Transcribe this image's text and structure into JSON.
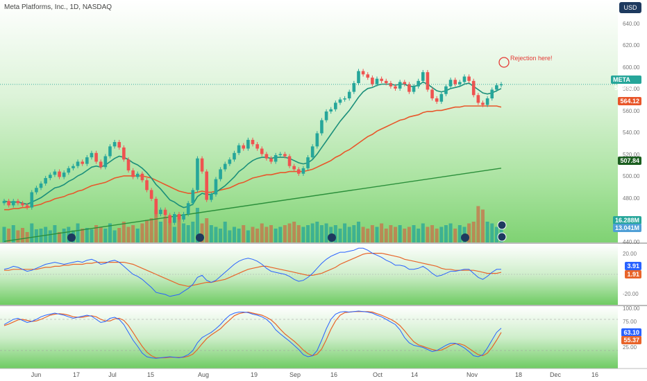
{
  "header": {
    "title": "Meta Platforms, Inc., 1D, NASDAQ",
    "currency_button": "USD"
  },
  "annotation": "Rejection here!",
  "colors": {
    "up": "#26a69a",
    "down": "#ef5350",
    "ema_fast": "#1b8f7a",
    "ema_mid": "#e8562a",
    "ema_slow": "#2a8f3a",
    "vol_up": "#26a69a",
    "vol_down": "#c9704a",
    "macd": "#2962ff",
    "signal": "#e8642a",
    "stoch_k": "#2962ff",
    "stoch_d": "#e8642a"
  },
  "price_axis": [
    "640.00",
    "620.00",
    "600.00",
    "580.00",
    "560.00",
    "540.00",
    "520.00",
    "500.00",
    "480.00",
    "460.00",
    "440.00"
  ],
  "badges": {
    "price": {
      "label": "META",
      "value": "584.82"
    },
    "ema_mid": "564.12",
    "ema_slow": "507.84",
    "vol1": "16.288M",
    "vol2": "13.041M",
    "macd_hi": "3.91",
    "macd_lo": "1.91",
    "stoch_hi": "63.10",
    "stoch_lo": "55.37"
  },
  "macd_axis": [
    "20.00",
    "-20.00"
  ],
  "stoch_axis": [
    "100.00",
    "75.00",
    "50.00",
    "25.00"
  ],
  "x_axis": [
    "Jun",
    "17",
    "Jul",
    "15",
    "Aug",
    "19",
    "Sep",
    "16",
    "Oct",
    "14",
    "Nov",
    "18",
    "Dec",
    "16"
  ],
  "chart_data": {
    "type": "candlestick",
    "title": "Meta Platforms, Inc., 1D, NASDAQ",
    "ylim": [
      440,
      645
    ],
    "close": [
      478,
      474,
      478,
      476,
      474,
      472,
      486,
      490,
      494,
      499,
      502,
      505,
      500,
      504,
      508,
      510,
      514,
      512,
      518,
      522,
      514,
      509,
      519,
      528,
      532,
      527,
      516,
      506,
      500,
      503,
      497,
      488,
      480,
      466,
      470,
      465,
      458,
      466,
      461,
      466,
      476,
      488,
      517,
      505,
      479,
      484,
      498,
      507,
      512,
      516,
      522,
      529,
      526,
      534,
      530,
      526,
      521,
      517,
      514,
      520,
      521,
      519,
      510,
      507,
      503,
      508,
      518,
      528,
      540,
      552,
      560,
      562,
      568,
      571,
      572,
      578,
      586,
      597,
      594,
      591,
      585,
      590,
      588,
      586,
      583,
      581,
      587,
      585,
      578,
      583,
      588,
      596,
      580,
      572,
      569,
      576,
      583,
      589,
      585,
      587,
      592,
      588,
      575,
      568,
      566,
      572,
      580,
      584,
      585
    ],
    "ema_fast": [
      478,
      477,
      477,
      477,
      476,
      475,
      477,
      479,
      481,
      484,
      487,
      490,
      491,
      493,
      496,
      498,
      501,
      503,
      506,
      509,
      510,
      509,
      511,
      514,
      517,
      519,
      518,
      516,
      513,
      511,
      508,
      504,
      499,
      493,
      489,
      484,
      479,
      477,
      474,
      472,
      473,
      475,
      482,
      485,
      484,
      484,
      486,
      489,
      492,
      496,
      500,
      505,
      508,
      512,
      515,
      517,
      518,
      518,
      517,
      518,
      518,
      518,
      517,
      515,
      513,
      512,
      513,
      516,
      521,
      527,
      533,
      539,
      545,
      551,
      556,
      561,
      567,
      573,
      578,
      581,
      582,
      584,
      585,
      585,
      585,
      584,
      585,
      585,
      583,
      583,
      584,
      587,
      585,
      582,
      579,
      578,
      579,
      581,
      582,
      583,
      585,
      586,
      583,
      580,
      577,
      576,
      577,
      579,
      581
    ],
    "ema_mid": [
      470,
      470,
      471,
      471,
      472,
      472,
      473,
      474,
      475,
      477,
      478,
      480,
      481,
      482,
      484,
      485,
      487,
      488,
      490,
      492,
      493,
      494,
      495,
      497,
      499,
      500,
      501,
      501,
      501,
      501,
      501,
      500,
      499,
      497,
      495,
      493,
      491,
      489,
      487,
      486,
      485,
      485,
      486,
      487,
      486,
      486,
      487,
      488,
      489,
      490,
      492,
      494,
      495,
      497,
      499,
      500,
      501,
      502,
      502,
      503,
      504,
      504,
      505,
      505,
      505,
      505,
      506,
      507,
      509,
      511,
      513,
      515,
      518,
      520,
      523,
      525,
      528,
      531,
      534,
      537,
      539,
      542,
      544,
      546,
      548,
      550,
      552,
      553,
      555,
      556,
      557,
      559,
      560,
      560,
      561,
      561,
      562,
      563,
      564,
      564,
      565,
      565,
      565,
      565,
      565,
      565,
      565,
      565,
      564
    ],
    "ema_slow_start": [
      0,
      441
    ],
    "ema_slow_end": [
      108,
      508
    ],
    "volume": [
      0.45,
      0.4,
      0.5,
      0.35,
      0.42,
      0.3,
      0.55,
      0.38,
      0.4,
      0.45,
      0.35,
      0.5,
      0.3,
      0.4,
      0.45,
      0.35,
      0.55,
      0.4,
      0.42,
      0.38,
      0.5,
      0.45,
      0.4,
      0.55,
      0.35,
      0.42,
      0.6,
      0.45,
      0.5,
      0.4,
      0.55,
      0.65,
      0.7,
      0.95,
      0.6,
      0.75,
      0.6,
      0.45,
      0.8,
      0.55,
      0.5,
      0.6,
      1.0,
      0.55,
      0.7,
      0.5,
      0.45,
      0.4,
      0.6,
      0.35,
      0.45,
      0.4,
      0.5,
      0.35,
      0.45,
      0.4,
      0.55,
      0.45,
      0.5,
      0.4,
      0.45,
      0.5,
      0.55,
      0.6,
      0.5,
      0.45,
      0.5,
      0.55,
      0.6,
      0.5,
      0.55,
      0.45,
      0.5,
      0.4,
      0.55,
      0.45,
      0.5,
      0.6,
      0.45,
      0.4,
      0.5,
      0.45,
      0.55,
      0.4,
      0.5,
      0.45,
      0.5,
      0.4,
      0.45,
      0.5,
      0.4,
      0.55,
      0.45,
      0.5,
      0.4,
      0.45,
      0.5,
      0.55,
      0.4,
      0.5,
      0.45,
      0.55,
      0.6,
      1.05,
      0.95,
      0.6,
      0.55,
      0.45,
      0.4
    ],
    "macd": [
      5,
      6,
      8,
      7,
      5,
      3,
      4,
      6,
      8,
      10,
      11,
      12,
      11,
      10,
      11,
      12,
      13,
      12,
      14,
      15,
      13,
      10,
      11,
      13,
      14,
      12,
      8,
      4,
      0,
      -2,
      -5,
      -9,
      -13,
      -18,
      -19,
      -20,
      -22,
      -21,
      -20,
      -17,
      -14,
      -10,
      -3,
      -1,
      -6,
      -8,
      -6,
      -2,
      2,
      6,
      10,
      13,
      15,
      16,
      15,
      13,
      10,
      6,
      3,
      2,
      1,
      0,
      -2,
      -5,
      -7,
      -6,
      -3,
      1,
      6,
      11,
      15,
      18,
      20,
      22,
      22,
      23,
      24,
      26,
      26,
      24,
      21,
      19,
      17,
      14,
      12,
      9,
      9,
      8,
      5,
      5,
      6,
      8,
      5,
      1,
      -2,
      -1,
      1,
      3,
      3,
      4,
      5,
      5,
      1,
      -3,
      -5,
      -2,
      2,
      5,
      5
    ],
    "signal": [
      4,
      4,
      5,
      5,
      5,
      5,
      5,
      5,
      6,
      7,
      7,
      8,
      8,
      9,
      9,
      10,
      10,
      10,
      11,
      11,
      12,
      12,
      12,
      12,
      12,
      12,
      12,
      11,
      10,
      8,
      6,
      4,
      2,
      0,
      -2,
      -4,
      -6,
      -8,
      -10,
      -11,
      -12,
      -11,
      -10,
      -9,
      -8,
      -8,
      -7,
      -6,
      -5,
      -3,
      -1,
      1,
      3,
      5,
      6,
      7,
      8,
      8,
      7,
      6,
      5,
      4,
      3,
      2,
      1,
      0,
      -1,
      -1,
      0,
      1,
      3,
      5,
      7,
      10,
      12,
      14,
      16,
      18,
      20,
      21,
      21,
      21,
      21,
      20,
      19,
      18,
      17,
      15,
      14,
      13,
      12,
      11,
      10,
      9,
      8,
      6,
      5,
      5,
      4,
      4,
      4,
      4,
      4,
      3,
      2,
      1,
      1,
      1,
      2
    ],
    "stoch_k": [
      70,
      75,
      80,
      82,
      78,
      74,
      76,
      80,
      85,
      88,
      90,
      92,
      90,
      88,
      85,
      82,
      84,
      86,
      88,
      86,
      80,
      74,
      76,
      82,
      84,
      80,
      70,
      55,
      40,
      28,
      15,
      8,
      6,
      5,
      6,
      7,
      8,
      7,
      6,
      8,
      12,
      20,
      35,
      45,
      50,
      55,
      62,
      70,
      80,
      88,
      92,
      94,
      94,
      93,
      90,
      88,
      85,
      80,
      72,
      60,
      52,
      45,
      38,
      30,
      22,
      12,
      8,
      10,
      20,
      40,
      62,
      80,
      90,
      94,
      95,
      94,
      95,
      96,
      95,
      94,
      92,
      88,
      85,
      80,
      75,
      70,
      60,
      45,
      35,
      30,
      28,
      26,
      22,
      18,
      20,
      25,
      30,
      34,
      34,
      30,
      25,
      18,
      10,
      8,
      12,
      25,
      40,
      55,
      63
    ],
    "stoch_d": [
      68,
      71,
      75,
      79,
      80,
      78,
      76,
      77,
      80,
      84,
      88,
      90,
      91,
      90,
      88,
      85,
      84,
      84,
      86,
      87,
      85,
      80,
      77,
      77,
      81,
      82,
      78,
      68,
      55,
      41,
      28,
      17,
      10,
      6,
      6,
      6,
      7,
      7,
      7,
      7,
      9,
      13,
      22,
      33,
      43,
      50,
      56,
      62,
      71,
      79,
      87,
      91,
      93,
      94,
      92,
      90,
      88,
      84,
      79,
      71,
      61,
      52,
      45,
      38,
      30,
      21,
      14,
      10,
      13,
      23,
      41,
      61,
      77,
      88,
      93,
      94,
      95,
      95,
      95,
      95,
      94,
      91,
      88,
      84,
      80,
      75,
      68,
      58,
      47,
      37,
      31,
      28,
      25,
      22,
      20,
      21,
      25,
      30,
      33,
      33,
      30,
      24,
      18,
      12,
      10,
      15,
      26,
      40,
      55
    ]
  }
}
